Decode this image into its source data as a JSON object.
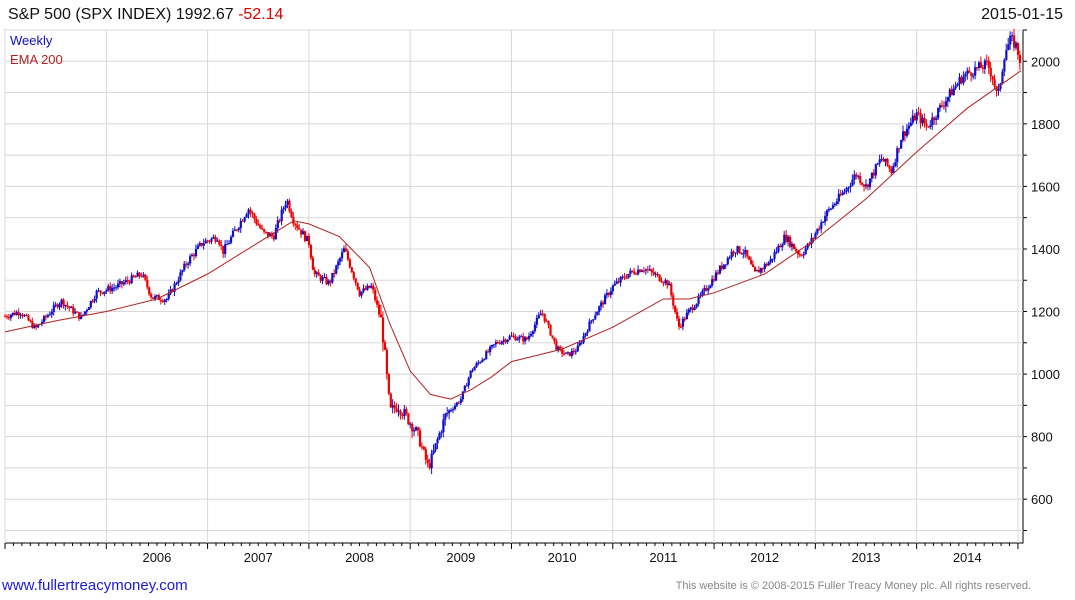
{
  "header": {
    "symbol_text": "S&P 500 (SPX INDEX)",
    "price": "1992.67",
    "change": "-52.14",
    "date": "2015-01-15"
  },
  "legend": {
    "weekly": "Weekly",
    "ema": "EMA 200"
  },
  "footer": {
    "website": "www.fullertreacymoney.com",
    "copyright": "This website is © 2008-2015 Fuller Treacy Money plc. All rights reserved."
  },
  "colors": {
    "up": "#1010cc",
    "down": "#ee0000",
    "ema": "#b22222",
    "grid": "#d8d8d8",
    "axis": "#000000"
  },
  "chart_data": {
    "type": "line",
    "description_style": "weekly candlestick-style price bars (blue up, red down) with a 200-period EMA overlay",
    "x_tick_labels": [
      "2006",
      "2007",
      "2008",
      "2009",
      "2010",
      "2011",
      "2012",
      "2013",
      "2014"
    ],
    "y_tick_labels": [
      600,
      800,
      1000,
      1200,
      1400,
      1600,
      1800,
      2000
    ],
    "xlim": [
      2005.0,
      2015.05
    ],
    "ylim": [
      460,
      2100
    ],
    "grid": true,
    "legend_position": "top-left",
    "price_series": {
      "name": "Weekly",
      "points": [
        [
          2005.0,
          1185
        ],
        [
          2005.15,
          1200
        ],
        [
          2005.3,
          1145
        ],
        [
          2005.55,
          1235
        ],
        [
          2005.75,
          1180
        ],
        [
          2005.9,
          1260
        ],
        [
          2006.1,
          1280
        ],
        [
          2006.35,
          1320
        ],
        [
          2006.45,
          1245
        ],
        [
          2006.6,
          1240
        ],
        [
          2006.8,
          1360
        ],
        [
          2006.95,
          1420
        ],
        [
          2007.1,
          1440
        ],
        [
          2007.15,
          1390
        ],
        [
          2007.4,
          1530
        ],
        [
          2007.55,
          1450
        ],
        [
          2007.65,
          1440
        ],
        [
          2007.78,
          1560
        ],
        [
          2007.85,
          1490
        ],
        [
          2008.0,
          1420
        ],
        [
          2008.05,
          1320
        ],
        [
          2008.2,
          1290
        ],
        [
          2008.35,
          1400
        ],
        [
          2008.5,
          1260
        ],
        [
          2008.62,
          1280
        ],
        [
          2008.72,
          1160
        ],
        [
          2008.8,
          880
        ],
        [
          2008.88,
          900
        ],
        [
          2008.97,
          860
        ],
        [
          2009.07,
          810
        ],
        [
          2009.18,
          700
        ],
        [
          2009.35,
          870
        ],
        [
          2009.5,
          920
        ],
        [
          2009.6,
          1010
        ],
        [
          2009.85,
          1100
        ],
        [
          2010.0,
          1120
        ],
        [
          2010.15,
          1110
        ],
        [
          2010.3,
          1200
        ],
        [
          2010.45,
          1080
        ],
        [
          2010.55,
          1060
        ],
        [
          2010.65,
          1080
        ],
        [
          2010.8,
          1180
        ],
        [
          2011.0,
          1280
        ],
        [
          2011.15,
          1320
        ],
        [
          2011.3,
          1340
        ],
        [
          2011.4,
          1320
        ],
        [
          2011.55,
          1290
        ],
        [
          2011.65,
          1150
        ],
        [
          2011.75,
          1200
        ],
        [
          2011.85,
          1240
        ],
        [
          2012.0,
          1310
        ],
        [
          2012.2,
          1400
        ],
        [
          2012.3,
          1390
        ],
        [
          2012.4,
          1320
        ],
        [
          2012.55,
          1360
        ],
        [
          2012.7,
          1440
        ],
        [
          2012.85,
          1380
        ],
        [
          2012.95,
          1420
        ],
        [
          2013.1,
          1510
        ],
        [
          2013.3,
          1590
        ],
        [
          2013.4,
          1640
        ],
        [
          2013.5,
          1600
        ],
        [
          2013.65,
          1690
        ],
        [
          2013.75,
          1650
        ],
        [
          2013.85,
          1760
        ],
        [
          2014.0,
          1830
        ],
        [
          2014.1,
          1790
        ],
        [
          2014.25,
          1860
        ],
        [
          2014.45,
          1950
        ],
        [
          2014.55,
          1970
        ],
        [
          2014.7,
          1990
        ],
        [
          2014.75,
          1950
        ],
        [
          2014.8,
          1880
        ],
        [
          2014.87,
          2030
        ],
        [
          2014.93,
          2070
        ],
        [
          2014.98,
          2050
        ],
        [
          2015.03,
          1993
        ]
      ]
    },
    "ema_series": {
      "name": "EMA 200",
      "points": [
        [
          2005.0,
          1135
        ],
        [
          2005.5,
          1170
        ],
        [
          2006.0,
          1200
        ],
        [
          2006.5,
          1240
        ],
        [
          2007.0,
          1320
        ],
        [
          2007.5,
          1420
        ],
        [
          2007.85,
          1490
        ],
        [
          2008.0,
          1480
        ],
        [
          2008.3,
          1440
        ],
        [
          2008.6,
          1340
        ],
        [
          2008.8,
          1160
        ],
        [
          2009.0,
          1010
        ],
        [
          2009.2,
          935
        ],
        [
          2009.4,
          920
        ],
        [
          2009.6,
          950
        ],
        [
          2009.8,
          990
        ],
        [
          2010.0,
          1040
        ],
        [
          2010.5,
          1080
        ],
        [
          2011.0,
          1150
        ],
        [
          2011.5,
          1240
        ],
        [
          2011.75,
          1240
        ],
        [
          2012.0,
          1260
        ],
        [
          2012.5,
          1320
        ],
        [
          2013.0,
          1430
        ],
        [
          2013.5,
          1560
        ],
        [
          2014.0,
          1710
        ],
        [
          2014.5,
          1850
        ],
        [
          2015.03,
          1970
        ]
      ]
    }
  }
}
